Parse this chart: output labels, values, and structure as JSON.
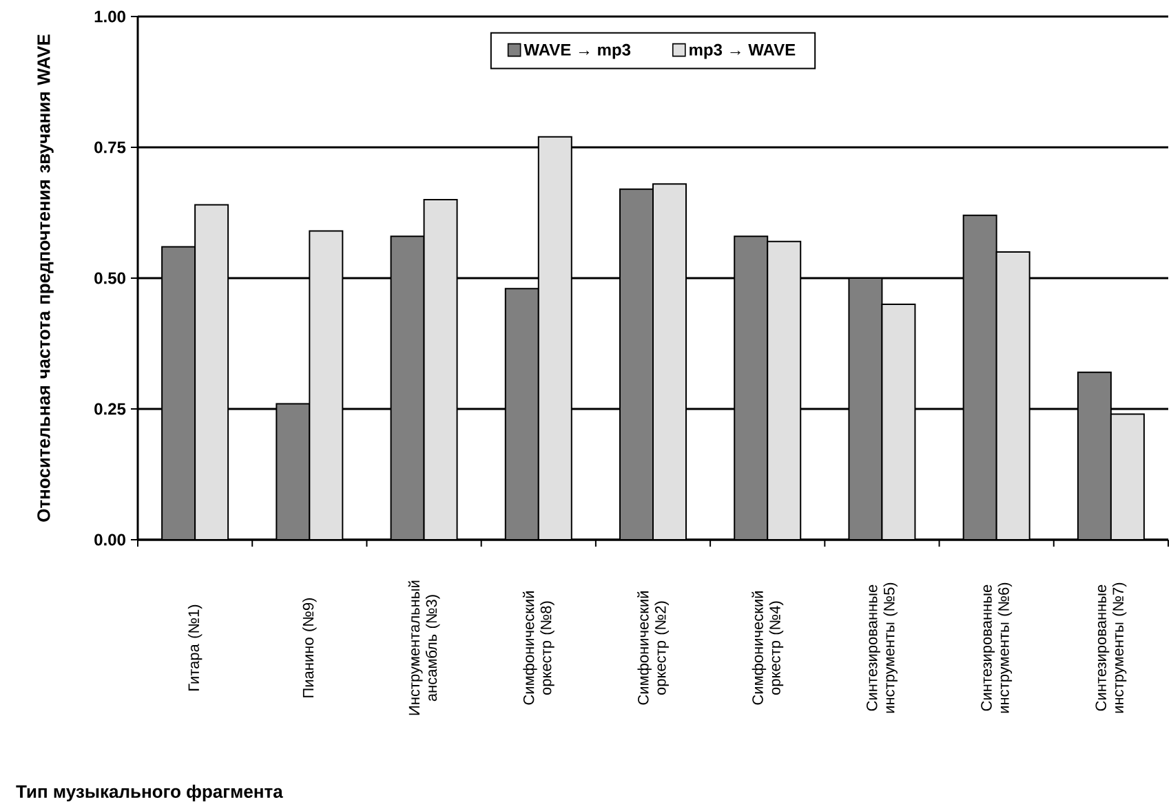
{
  "chart_data": {
    "type": "bar",
    "xlabel": "Тип музыкального фрагмента",
    "ylabel": "Относительная частота предпочтения звучания WAVE",
    "categories": [
      "Гитара (№1)",
      "Пианино (№9)",
      "Инструментальный ансамбль (№3)",
      "Симфонический оркестр (№8)",
      "Симфонический оркестр (№2)",
      "Симфонический оркестр (№4)",
      "Синтезированные инструменты (№5)",
      "Синтезированные инструменты (№6)",
      "Синтезированные инструменты (№7)"
    ],
    "series": [
      {
        "name": "WAVE → mp3",
        "color": "#808080",
        "values": [
          0.56,
          0.26,
          0.58,
          0.48,
          0.67,
          0.58,
          0.5,
          0.62,
          0.32
        ]
      },
      {
        "name": "mp3 → WAVE",
        "color": "#e0e0e0",
        "values": [
          0.64,
          0.59,
          0.65,
          0.77,
          0.68,
          0.57,
          0.45,
          0.55,
          0.24
        ]
      }
    ],
    "ylim": [
      0,
      1
    ],
    "yticks": [
      {
        "value": 0,
        "label": "0.00"
      },
      {
        "value": 0.25,
        "label": "0.25"
      },
      {
        "value": 0.5,
        "label": "0.50"
      },
      {
        "value": 0.75,
        "label": "0.75"
      },
      {
        "value": 1,
        "label": "1.00"
      }
    ],
    "grid": "y",
    "legend": "top"
  }
}
